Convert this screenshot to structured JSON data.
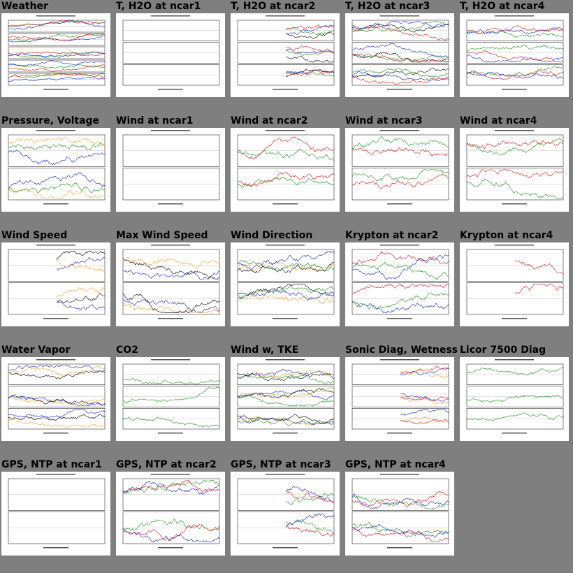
{
  "page": {
    "background": "#7f7f7f"
  },
  "colors": {
    "red": "#e01010",
    "green": "#189018",
    "blue": "#1020d0",
    "orange": "#f0a020",
    "black": "#000000"
  },
  "thumbnails": [
    {
      "title": "Weather",
      "panels": 5,
      "series": [
        "green",
        "blue",
        "red"
      ]
    },
    {
      "title": "T, H2O at ncar1",
      "panels": 3,
      "series": []
    },
    {
      "title": "T, H2O at ncar2",
      "panels": 3,
      "series": [
        "green",
        "blue",
        "black",
        "red"
      ]
    },
    {
      "title": "T, H2O at ncar3",
      "panels": 3,
      "series": [
        "black",
        "blue",
        "red",
        "green"
      ]
    },
    {
      "title": "T, H2O at ncar4",
      "panels": 3,
      "series": [
        "green",
        "blue",
        "red"
      ]
    },
    {
      "title": "Pressure, Voltage",
      "panels": 2,
      "series": [
        "blue",
        "green",
        "orange"
      ]
    },
    {
      "title": "Wind at ncar1",
      "panels": 2,
      "series": []
    },
    {
      "title": "Wind at ncar2",
      "panels": 2,
      "series": [
        "green",
        "red"
      ]
    },
    {
      "title": "Wind at ncar3",
      "panels": 2,
      "series": [
        "green",
        "red"
      ]
    },
    {
      "title": "Wind at ncar4",
      "panels": 2,
      "series": [
        "green",
        "red"
      ]
    },
    {
      "title": "Wind Speed",
      "panels": 2,
      "series": [
        "blue",
        "orange",
        "black"
      ]
    },
    {
      "title": "Max Wind Speed",
      "panels": 2,
      "series": [
        "blue",
        "orange",
        "black"
      ]
    },
    {
      "title": "Wind Direction",
      "panels": 2,
      "series": [
        "orange",
        "blue",
        "green",
        "black"
      ]
    },
    {
      "title": "Krypton at ncar2",
      "panels": 2,
      "series": [
        "red",
        "blue",
        "green"
      ]
    },
    {
      "title": "Krypton at ncar4",
      "panels": 2,
      "series": [
        "red"
      ]
    },
    {
      "title": "Water Vapor",
      "panels": 3,
      "series": [
        "blue",
        "orange",
        "black"
      ]
    },
    {
      "title": "CO2",
      "panels": 3,
      "series": [
        "green"
      ]
    },
    {
      "title": "Wind w, TKE",
      "panels": 3,
      "series": [
        "blue",
        "orange",
        "green",
        "black"
      ]
    },
    {
      "title": "Sonic Diag, Wetness",
      "panels": 3,
      "series": [
        "blue",
        "orange",
        "red"
      ]
    },
    {
      "title": "Licor 7500 Diag",
      "panels": 3,
      "series": [
        "green"
      ]
    },
    {
      "title": "GPS, NTP at ncar1",
      "panels": 2,
      "series": []
    },
    {
      "title": "GPS, NTP at ncar2",
      "panels": 2,
      "series": [
        "green",
        "blue",
        "red"
      ]
    },
    {
      "title": "GPS, NTP at ncar3",
      "panels": 2,
      "series": [
        "green",
        "blue",
        "red"
      ]
    },
    {
      "title": "GPS, NTP at ncar4",
      "panels": 2,
      "series": [
        "green",
        "blue",
        "red"
      ]
    }
  ]
}
